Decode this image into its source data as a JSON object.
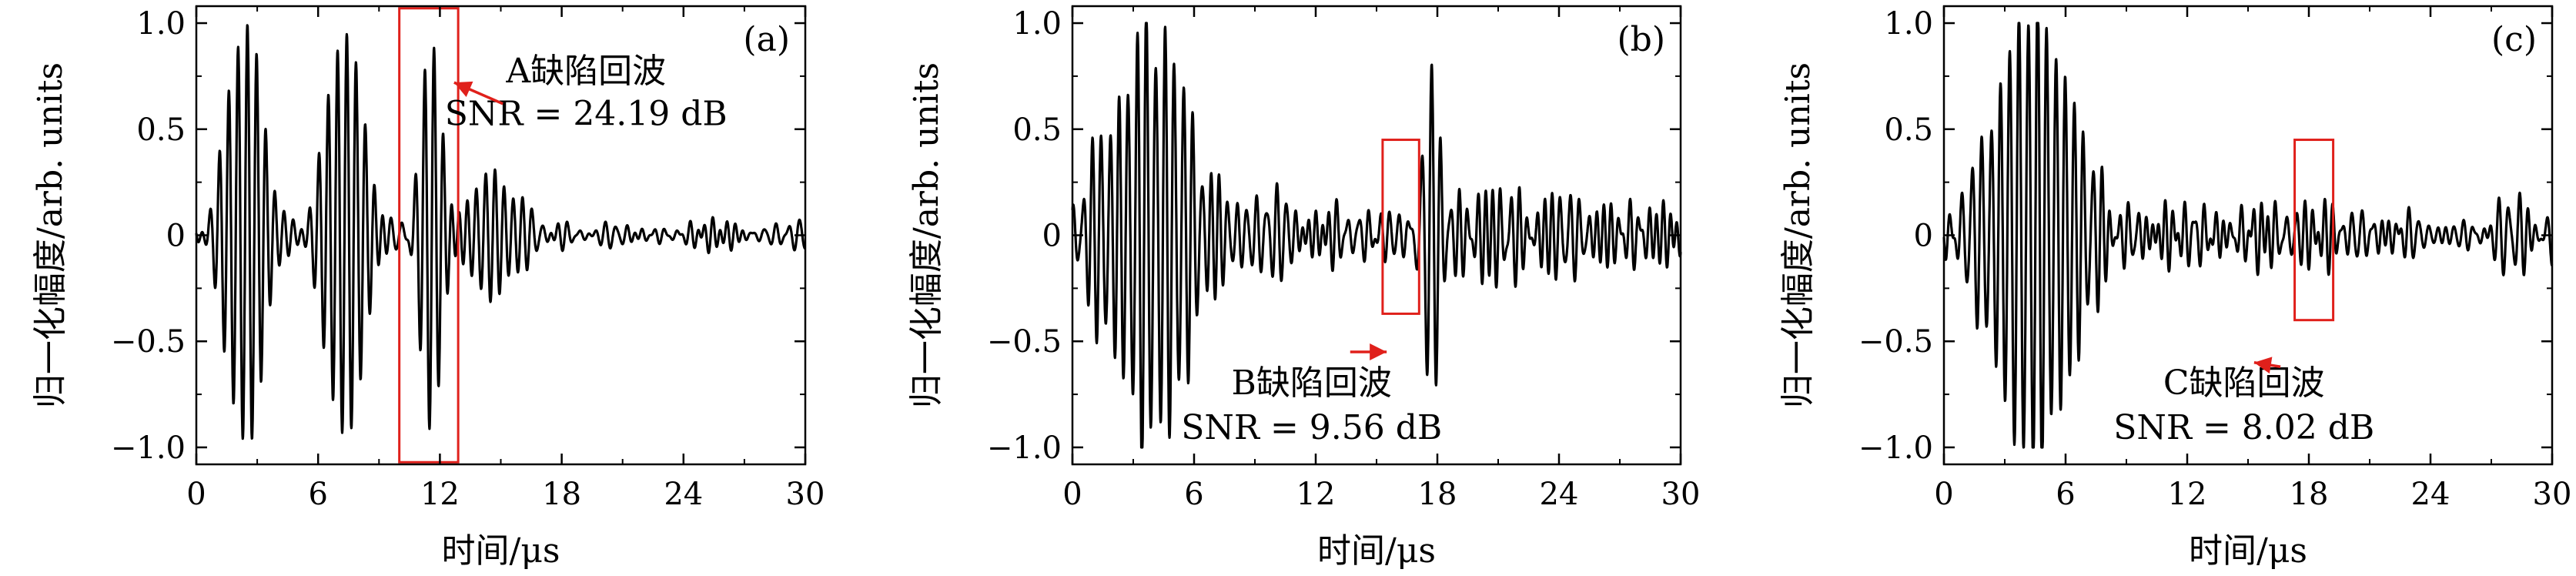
{
  "chart_data": [
    {
      "type": "line",
      "panel_label": "(a)",
      "xlabel": "时间/μs",
      "ylabel": "归一化幅度/arb. units",
      "xlim": [
        0,
        30
      ],
      "ylim": [
        -1.08,
        1.08
      ],
      "xticks": [
        "0",
        "6",
        "12",
        "18",
        "24",
        "30"
      ],
      "yticks": [
        "−1.0",
        "−0.5",
        "0",
        "0.5",
        "1.0"
      ],
      "highlight": {
        "x0": 10.0,
        "x1": 12.9,
        "y0": -1.07,
        "y1": 1.07,
        "color": "#e0201b"
      },
      "annotation": {
        "line1": "A缺陷回波",
        "line2": "SNR = 24.19 dB",
        "arrow_to": [
          12.7,
          0.72
        ]
      },
      "packets": [
        {
          "c": 2.4,
          "w": 1.25,
          "a": 1.0,
          "f": 2.2
        },
        {
          "c": 7.3,
          "w": 1.3,
          "a": 0.95,
          "f": 2.2
        },
        {
          "c": 11.6,
          "w": 0.75,
          "a": 0.95,
          "f": 2.2
        },
        {
          "c": 14.6,
          "w": 1.8,
          "a": 0.28,
          "f": 2.2
        }
      ],
      "noise": 0.06,
      "seed": 11
    },
    {
      "type": "line",
      "panel_label": "(b)",
      "xlabel": "时间/μs",
      "ylabel": "归一化幅度/arb. units",
      "xlim": [
        0,
        30
      ],
      "ylim": [
        -1.08,
        1.08
      ],
      "xticks": [
        "0",
        "6",
        "12",
        "18",
        "24",
        "30"
      ],
      "yticks": [
        "−1.0",
        "−0.5",
        "0",
        "0.5",
        "1.0"
      ],
      "highlight": {
        "x0": 15.3,
        "x1": 17.1,
        "y0": -0.37,
        "y1": 0.45,
        "color": "#e0201b"
      },
      "annotation": {
        "line1": "B缺陷回波",
        "line2": "SNR = 9.56 dB",
        "arrow_to": [
          15.5,
          -0.55
        ]
      },
      "packets": [
        {
          "c": 4.0,
          "w": 2.6,
          "a": 0.98,
          "f": 2.2
        },
        {
          "c": 17.6,
          "w": 0.55,
          "a": 0.82,
          "f": 2.2
        }
      ],
      "noise": 0.2,
      "seed": 23
    },
    {
      "type": "line",
      "panel_label": "(c)",
      "xlabel": "时间/μs",
      "ylabel": "归一化幅度/arb. units",
      "xlim": [
        0,
        30
      ],
      "ylim": [
        -1.08,
        1.08
      ],
      "xticks": [
        "0",
        "6",
        "12",
        "18",
        "24",
        "30"
      ],
      "yticks": [
        "−1.0",
        "−0.5",
        "0",
        "0.5",
        "1.0"
      ],
      "highlight": {
        "x0": 17.3,
        "x1": 19.2,
        "y0": -0.4,
        "y1": 0.45,
        "color": "#e0201b"
      },
      "annotation": {
        "line1": "C缺陷回波",
        "line2": "SNR = 8.02 dB",
        "arrow_to": [
          15.3,
          -0.6
        ]
      },
      "packets": [
        {
          "c": 4.5,
          "w": 2.6,
          "a": 1.0,
          "f": 2.2
        }
      ],
      "noise": 0.17,
      "seed": 37
    }
  ]
}
